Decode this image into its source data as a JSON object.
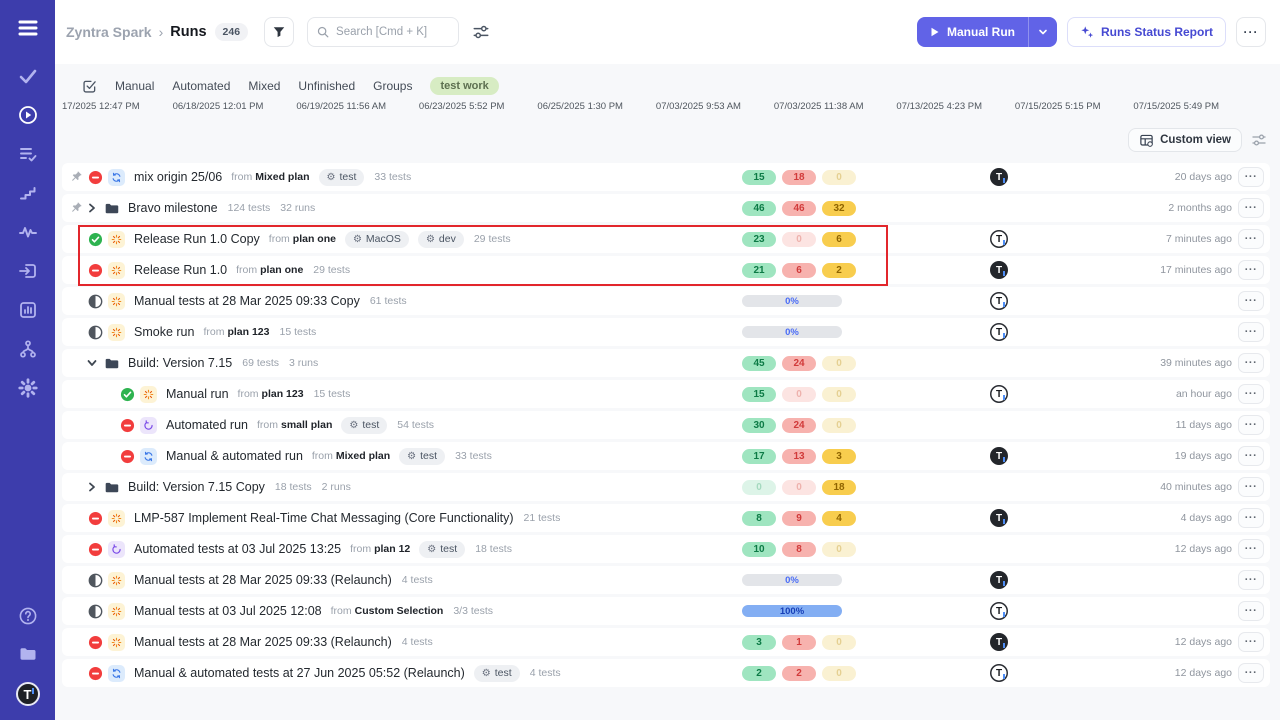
{
  "colors": {
    "accent": "#6163e7",
    "sidebar": "#3d3dac",
    "annotation": "#e2262c",
    "pill_green": "#9fe5c0",
    "pill_red": "#f7b2ae",
    "pill_yellow": "#f8cd4e",
    "bar_blue": "#83aef3",
    "active_tag_bg": "#d7ecc3"
  },
  "sidebar": {
    "top_icon": "menu",
    "items": [
      "tasks-check",
      "runs-play",
      "list-check",
      "steps",
      "activity-pulse",
      "import",
      "analytics",
      "branches",
      "settings-gear"
    ],
    "active_item": "runs-play",
    "bottom_items": [
      "help",
      "projects-folder"
    ],
    "profile_initial": "T"
  },
  "header": {
    "project": "Zyntra Spark",
    "separator": "›",
    "page": "Runs",
    "count": "246",
    "search_placeholder": "Search [Cmd + K]",
    "manual_run": "Manual Run",
    "report": "Runs Status Report"
  },
  "filters": {
    "tabs": [
      "Manual",
      "Automated",
      "Mixed",
      "Unfinished",
      "Groups"
    ],
    "active_tag": "test work"
  },
  "timeline": {
    "dates": [
      "17/2025 12:47 PM",
      "06/18/2025 12:01 PM",
      "06/19/2025 11:56 AM",
      "06/23/2025 5:52 PM",
      "06/25/2025 1:30 PM",
      "07/03/2025 9:53 AM",
      "07/03/2025 11:38 AM",
      "07/13/2025 4:23 PM",
      "07/15/2025 5:15 PM",
      "07/15/2025 5:49 PM"
    ]
  },
  "toolbar": {
    "custom_view": "Custom view"
  },
  "labels": {
    "from": "from",
    "dots": "···"
  },
  "runs": [
    {
      "pinned": true,
      "status": "failed",
      "type": "mixed",
      "name": "mix origin 25/06",
      "from": "Mixed plan",
      "tags": [
        "test"
      ],
      "tests": "33 tests",
      "stats": {
        "type": "pills",
        "items": [
          {
            "value": "15",
            "tone": "g"
          },
          {
            "value": "18",
            "tone": "r"
          },
          {
            "value": "0",
            "tone": "yf"
          }
        ]
      },
      "avatar": "filled",
      "time": "20 days ago"
    },
    {
      "pinned": true,
      "group": true,
      "expanded": false,
      "name": "Bravo milestone",
      "tests": "124 tests",
      "runs_count": "32 runs",
      "stats": {
        "type": "pills",
        "items": [
          {
            "value": "46",
            "tone": "g"
          },
          {
            "value": "46",
            "tone": "r"
          },
          {
            "value": "32",
            "tone": "y"
          }
        ]
      },
      "avatar": null,
      "time": "2 months ago"
    },
    {
      "status": "passed",
      "type": "manual",
      "name": "Release Run 1.0 Copy",
      "from": "plan one",
      "tags": [
        "MacOS",
        "dev"
      ],
      "tests": "29 tests",
      "stats": {
        "type": "pills",
        "items": [
          {
            "value": "23",
            "tone": "g"
          },
          {
            "value": "0",
            "tone": "rf"
          },
          {
            "value": "6",
            "tone": "y"
          }
        ]
      },
      "avatar": "outline",
      "time": "7 minutes ago"
    },
    {
      "status": "failed",
      "type": "manual",
      "name": "Release Run 1.0",
      "from": "plan one",
      "tests": "29 tests",
      "stats": {
        "type": "pills",
        "items": [
          {
            "value": "21",
            "tone": "g"
          },
          {
            "value": "6",
            "tone": "r"
          },
          {
            "value": "2",
            "tone": "y"
          }
        ]
      },
      "avatar": "filled",
      "time": "17 minutes ago"
    },
    {
      "status": "pending",
      "type": "manual",
      "name": "Manual tests at 28 Mar 2025 09:33 Copy",
      "tests": "61 tests",
      "stats": {
        "type": "bar",
        "label": "0%",
        "variant": "empty"
      },
      "avatar": "outline",
      "time": ""
    },
    {
      "status": "pending",
      "type": "manual",
      "name": "Smoke run",
      "from": "plan 123",
      "tests": "15 tests",
      "stats": {
        "type": "bar",
        "label": "0%",
        "variant": "empty"
      },
      "avatar": "outline",
      "time": ""
    },
    {
      "group": true,
      "expanded": true,
      "name": "Build: Version 7.15",
      "tests": "69 tests",
      "runs_count": "3 runs",
      "stats": {
        "type": "pills",
        "items": [
          {
            "value": "45",
            "tone": "g"
          },
          {
            "value": "24",
            "tone": "r"
          },
          {
            "value": "0",
            "tone": "yf"
          }
        ]
      },
      "avatar": null,
      "time": "39 minutes ago"
    },
    {
      "indent": true,
      "status": "passed",
      "type": "manual",
      "name": "Manual run",
      "from": "plan 123",
      "tests": "15 tests",
      "stats": {
        "type": "pills",
        "items": [
          {
            "value": "15",
            "tone": "g"
          },
          {
            "value": "0",
            "tone": "rf"
          },
          {
            "value": "0",
            "tone": "yf"
          }
        ]
      },
      "avatar": "outline",
      "time": "an hour ago"
    },
    {
      "indent": true,
      "status": "failed",
      "type": "automated",
      "name": "Automated run",
      "from": "small plan",
      "tags": [
        "test"
      ],
      "tests": "54 tests",
      "stats": {
        "type": "pills",
        "items": [
          {
            "value": "30",
            "tone": "g"
          },
          {
            "value": "24",
            "tone": "r"
          },
          {
            "value": "0",
            "tone": "yf"
          }
        ]
      },
      "avatar": null,
      "time": "11 days ago"
    },
    {
      "indent": true,
      "status": "failed",
      "type": "mixed",
      "name": "Manual & automated run",
      "from": "Mixed plan",
      "tags": [
        "test"
      ],
      "tests": "33 tests",
      "stats": {
        "type": "pills",
        "items": [
          {
            "value": "17",
            "tone": "g"
          },
          {
            "value": "13",
            "tone": "r"
          },
          {
            "value": "3",
            "tone": "y"
          }
        ]
      },
      "avatar": "filled",
      "time": "19 days ago"
    },
    {
      "group": true,
      "expanded": false,
      "name": "Build: Version 7.15 Copy",
      "tests": "18 tests",
      "runs_count": "2 runs",
      "stats": {
        "type": "pills",
        "items": [
          {
            "value": "0",
            "tone": "gf"
          },
          {
            "value": "0",
            "tone": "rf"
          },
          {
            "value": "18",
            "tone": "y"
          }
        ]
      },
      "avatar": null,
      "time": "40 minutes ago"
    },
    {
      "status": "failed",
      "type": "manual",
      "name": "LMP-587 Implement Real-Time Chat Messaging (Core Functionality)",
      "tests": "21 tests",
      "stats": {
        "type": "pills",
        "items": [
          {
            "value": "8",
            "tone": "g"
          },
          {
            "value": "9",
            "tone": "r"
          },
          {
            "value": "4",
            "tone": "y"
          }
        ]
      },
      "avatar": "filled",
      "time": "4 days ago"
    },
    {
      "status": "failed",
      "type": "automated",
      "name": "Automated tests at 03 Jul 2025 13:25",
      "from": "plan 12",
      "tags": [
        "test"
      ],
      "tests": "18 tests",
      "stats": {
        "type": "pills",
        "items": [
          {
            "value": "10",
            "tone": "g"
          },
          {
            "value": "8",
            "tone": "r"
          },
          {
            "value": "0",
            "tone": "yf"
          }
        ]
      },
      "avatar": null,
      "time": "12 days ago"
    },
    {
      "status": "pending",
      "type": "manual",
      "name": "Manual tests at 28 Mar 2025 09:33 (Relaunch)",
      "tests": "4 tests",
      "stats": {
        "type": "bar",
        "label": "0%",
        "variant": "empty"
      },
      "avatar": "filled",
      "time": ""
    },
    {
      "status": "pending",
      "type": "manual",
      "name": "Manual tests at 03 Jul 2025 12:08",
      "from": "Custom Selection",
      "tests": "3/3 tests",
      "stats": {
        "type": "bar",
        "label": "100%",
        "variant": "full"
      },
      "avatar": "outline",
      "time": ""
    },
    {
      "status": "failed",
      "type": "manual",
      "name": "Manual tests at 28 Mar 2025 09:33 (Relaunch)",
      "tests": "4 tests",
      "stats": {
        "type": "pills",
        "items": [
          {
            "value": "3",
            "tone": "g"
          },
          {
            "value": "1",
            "tone": "r"
          },
          {
            "value": "0",
            "tone": "yf"
          }
        ]
      },
      "avatar": "filled",
      "time": "12 days ago"
    },
    {
      "status": "failed",
      "type": "mixed",
      "name": "Manual & automated tests at 27 Jun 2025 05:52 (Relaunch)",
      "tags": [
        "test"
      ],
      "tests": "4 tests",
      "stats": {
        "type": "pills",
        "items": [
          {
            "value": "2",
            "tone": "g"
          },
          {
            "value": "2",
            "tone": "r"
          },
          {
            "value": "0",
            "tone": "yf"
          }
        ]
      },
      "avatar": "outline",
      "time": "12 days ago"
    }
  ]
}
